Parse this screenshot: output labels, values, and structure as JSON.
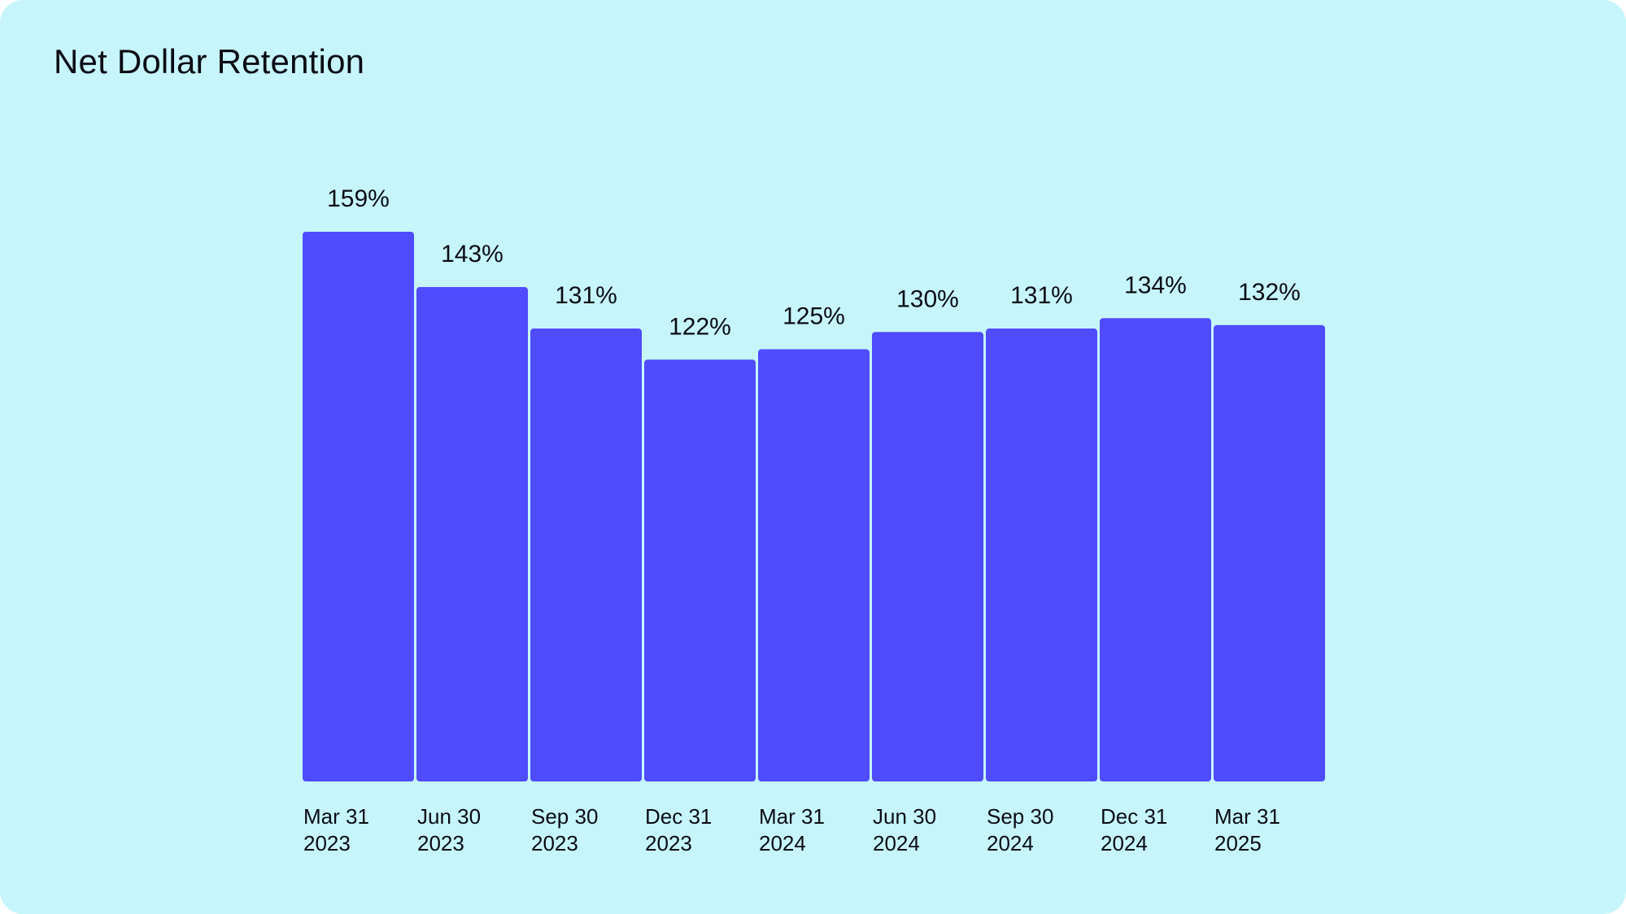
{
  "chart_data": {
    "type": "bar",
    "title": "Net Dollar Retention",
    "categories": [
      [
        "Mar 31",
        "2023"
      ],
      [
        "Jun 30",
        "2023"
      ],
      [
        "Sep 30",
        "2023"
      ],
      [
        "Dec 31",
        "2023"
      ],
      [
        "Mar 31",
        "2024"
      ],
      [
        "Jun 30",
        "2024"
      ],
      [
        "Sep 30",
        "2024"
      ],
      [
        "Dec 31",
        "2024"
      ],
      [
        "Mar 31",
        "2025"
      ]
    ],
    "values": [
      159,
      143,
      131,
      122,
      125,
      130,
      131,
      134,
      132
    ],
    "value_labels": [
      "159%",
      "143%",
      "131%",
      "122%",
      "125%",
      "130%",
      "131%",
      "134%",
      "132%"
    ],
    "unit": "%",
    "ylim": [
      0,
      159
    ],
    "grid": false,
    "legend": "none",
    "bar_color": "#4f4bff",
    "background_color": "#c6f6fb"
  }
}
